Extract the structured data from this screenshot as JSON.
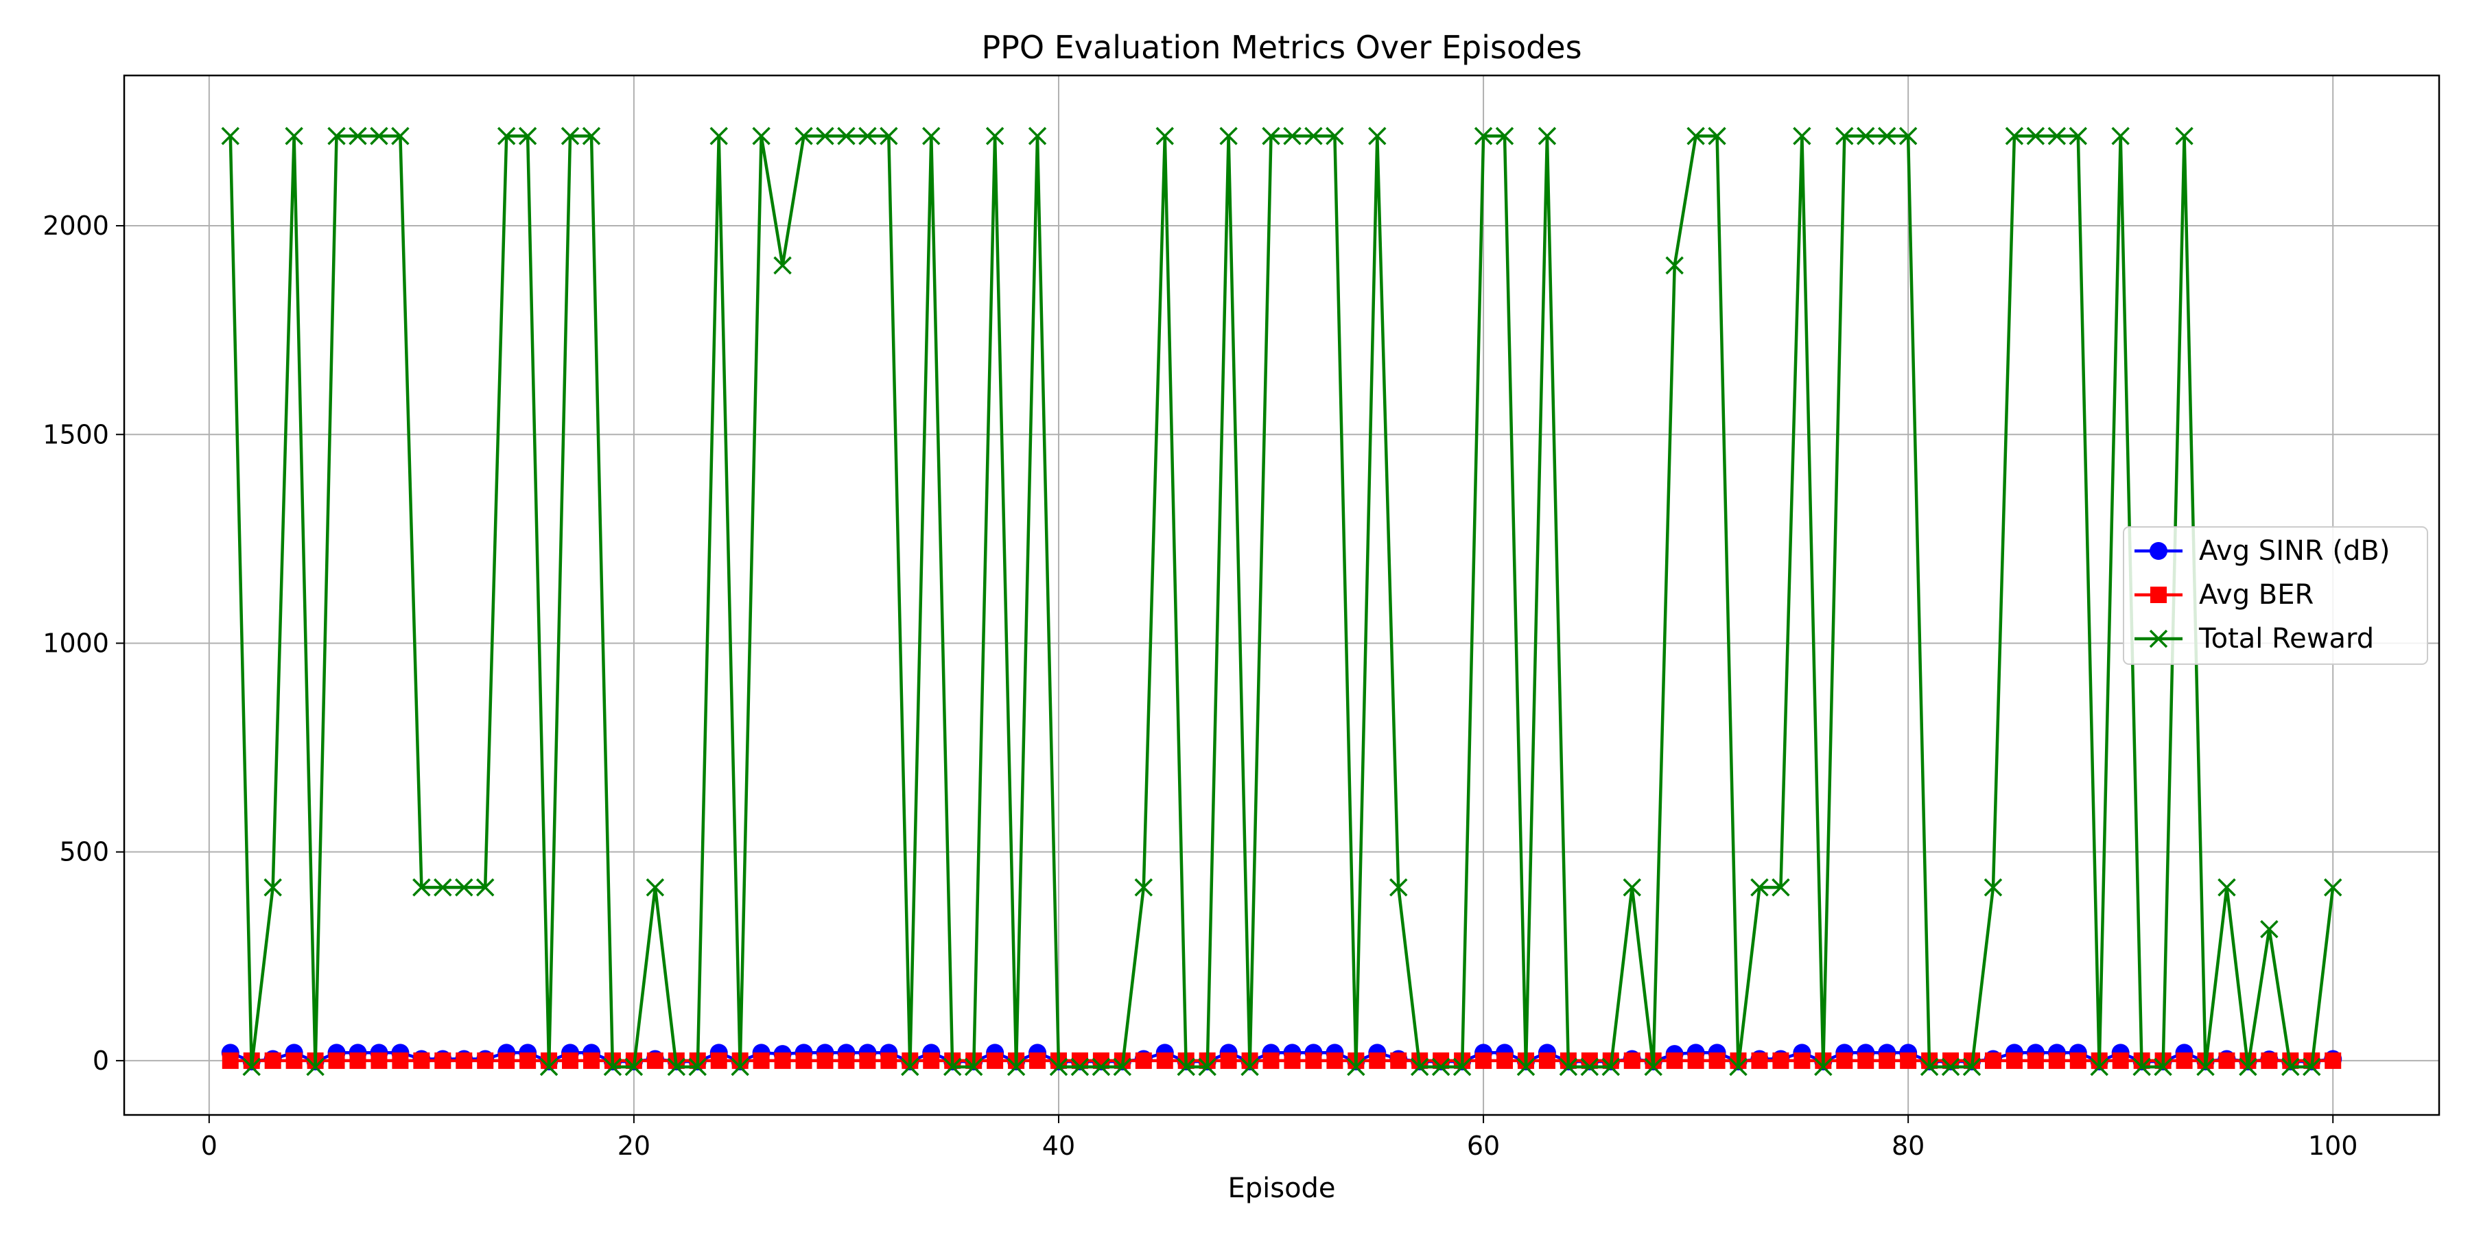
{
  "chart_data": {
    "type": "line",
    "title": "PPO Evaluation Metrics Over Episodes",
    "xlabel": "Episode",
    "ylabel": "",
    "xlim": [
      -4,
      105
    ],
    "ylim": [
      -130,
      2360
    ],
    "xticks": [
      0,
      20,
      40,
      60,
      80,
      100
    ],
    "yticks": [
      0,
      500,
      1000,
      1500,
      2000
    ],
    "grid": true,
    "legend_position": "center-right",
    "x": [
      1,
      2,
      3,
      4,
      5,
      6,
      7,
      8,
      9,
      10,
      11,
      12,
      13,
      14,
      15,
      16,
      17,
      18,
      19,
      20,
      21,
      22,
      23,
      24,
      25,
      26,
      27,
      28,
      29,
      30,
      31,
      32,
      33,
      34,
      35,
      36,
      37,
      38,
      39,
      40,
      41,
      42,
      43,
      44,
      45,
      46,
      47,
      48,
      49,
      50,
      51,
      52,
      53,
      54,
      55,
      56,
      57,
      58,
      59,
      60,
      61,
      62,
      63,
      64,
      65,
      66,
      67,
      68,
      69,
      70,
      71,
      72,
      73,
      74,
      75,
      76,
      77,
      78,
      79,
      80,
      81,
      82,
      83,
      84,
      85,
      86,
      87,
      88,
      89,
      90,
      91,
      92,
      93,
      94,
      95,
      96,
      97,
      98,
      99,
      100
    ],
    "series": [
      {
        "name": "Avg SINR (dB)",
        "color": "#0000ff",
        "marker": "circle",
        "values": [
          19,
          -2,
          4,
          19,
          -2,
          19,
          19,
          19,
          19,
          4,
          4,
          4,
          4,
          19,
          19,
          -2,
          19,
          19,
          -2,
          -2,
          4,
          -2,
          -2,
          19,
          -2,
          19,
          16,
          19,
          19,
          19,
          19,
          19,
          -2,
          19,
          -2,
          -2,
          19,
          -2,
          19,
          -2,
          -2,
          -2,
          -2,
          4,
          19,
          -2,
          -2,
          19,
          -2,
          19,
          19,
          19,
          19,
          -2,
          19,
          4,
          -2,
          -2,
          -2,
          19,
          19,
          -2,
          19,
          -2,
          -2,
          -2,
          4,
          -2,
          16,
          19,
          19,
          -2,
          4,
          4,
          19,
          -2,
          19,
          19,
          19,
          19,
          -2,
          -2,
          -2,
          4,
          19,
          19,
          19,
          19,
          -2,
          19,
          -2,
          -2,
          19,
          -2,
          4,
          -2,
          3,
          -2,
          -2,
          4
        ]
      },
      {
        "name": "Avg BER",
        "color": "#ff0000",
        "marker": "square",
        "values": [
          0,
          0,
          0,
          0,
          0,
          0,
          0,
          0,
          0,
          0,
          0,
          0,
          0,
          0,
          0,
          0,
          0,
          0,
          0,
          0,
          0,
          0,
          0,
          0,
          0,
          0,
          0,
          0,
          0,
          0,
          0,
          0,
          0,
          0,
          0,
          0,
          0,
          0,
          0,
          0,
          0,
          0,
          0,
          0,
          0,
          0,
          0,
          0,
          0,
          0,
          0,
          0,
          0,
          0,
          0,
          0,
          0,
          0,
          0,
          0,
          0,
          0,
          0,
          0,
          0,
          0,
          0,
          0,
          0,
          0,
          0,
          0,
          0,
          0,
          0,
          0,
          0,
          0,
          0,
          0,
          0,
          0,
          0,
          0,
          0,
          0,
          0,
          0,
          0,
          0,
          0,
          0,
          0,
          0,
          0,
          0,
          0,
          0,
          0,
          0
        ]
      },
      {
        "name": "Total Reward",
        "color": "#008000",
        "marker": "x",
        "values": [
          2215,
          -15,
          415,
          2215,
          -15,
          2215,
          2215,
          2215,
          2215,
          415,
          415,
          415,
          415,
          2215,
          2215,
          -15,
          2215,
          2215,
          -15,
          -15,
          415,
          -15,
          -15,
          2215,
          -15,
          2215,
          1905,
          2215,
          2215,
          2215,
          2215,
          2215,
          -15,
          2215,
          -15,
          -15,
          2215,
          -15,
          2215,
          -15,
          -15,
          -15,
          -15,
          415,
          2215,
          -15,
          -15,
          2215,
          -15,
          2215,
          2215,
          2215,
          2215,
          -15,
          2215,
          415,
          -15,
          -15,
          -15,
          2215,
          2215,
          -15,
          2215,
          -15,
          -15,
          -15,
          415,
          -15,
          1905,
          2215,
          2215,
          -15,
          415,
          415,
          2215,
          -15,
          2215,
          2215,
          2215,
          2215,
          -15,
          -15,
          -15,
          415,
          2215,
          2215,
          2215,
          2215,
          -15,
          2215,
          -15,
          -15,
          2215,
          -15,
          415,
          -15,
          315,
          -15,
          -15,
          415
        ]
      }
    ]
  }
}
